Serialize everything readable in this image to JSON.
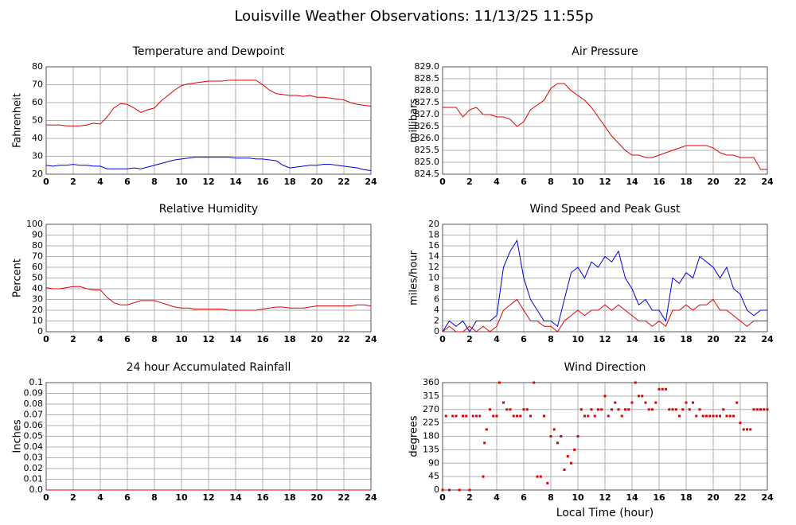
{
  "title": "Louisville Weather Observations: 11/13/25 11:55p",
  "chart_data": [
    {
      "type": "line",
      "title": "Temperature and Dewpoint",
      "ylabel": "Fahrenheit",
      "xlim": [
        0,
        24
      ],
      "xticks": [
        0,
        2,
        4,
        6,
        8,
        10,
        12,
        14,
        16,
        18,
        20,
        22,
        24
      ],
      "ylim": [
        20,
        80
      ],
      "yticks": [
        20,
        30,
        40,
        50,
        60,
        70,
        80
      ],
      "grid": true,
      "x": [
        0,
        0.5,
        1,
        1.5,
        2,
        2.5,
        3,
        3.5,
        4,
        4.5,
        5,
        5.5,
        6,
        6.5,
        7,
        7.5,
        8,
        8.5,
        9,
        9.5,
        10,
        10.5,
        11,
        11.5,
        12,
        12.5,
        13,
        13.5,
        14,
        14.5,
        15,
        15.5,
        16,
        16.5,
        17,
        17.5,
        18,
        18.5,
        19,
        19.5,
        20,
        20.5,
        21,
        21.5,
        22,
        22.5,
        23,
        23.5,
        24
      ],
      "series": [
        {
          "color": "#e00000",
          "values": [
            47.5,
            47.5,
            47.5,
            47,
            47,
            47,
            47.5,
            48.5,
            48,
            52,
            57,
            59.5,
            59,
            57,
            54.5,
            56,
            57,
            61,
            64,
            67,
            69.5,
            70.5,
            71,
            71.5,
            72,
            72,
            72,
            72.5,
            72.5,
            72.5,
            72.5,
            72.5,
            70,
            67,
            65,
            64.5,
            64,
            64,
            63.5,
            64,
            63,
            63,
            62.5,
            62,
            61.5,
            60,
            59,
            58.5,
            58
          ]
        },
        {
          "color": "#0000e0",
          "values": [
            25,
            24.5,
            25,
            25,
            25.5,
            25,
            25,
            24.5,
            24.5,
            23,
            23,
            23,
            23,
            23.5,
            23,
            24,
            25,
            26,
            27,
            28,
            28.5,
            29,
            29.5,
            29.5,
            29.5,
            29.5,
            29.5,
            29.5,
            29,
            29,
            29,
            28.5,
            28.5,
            28,
            27.5,
            25,
            23.5,
            24,
            24.5,
            25,
            25,
            25.5,
            25.5,
            25,
            24.5,
            24,
            23.5,
            22.5,
            22
          ]
        }
      ]
    },
    {
      "type": "line",
      "title": "Air Pressure",
      "ylabel": "millibars",
      "xlim": [
        0,
        24
      ],
      "xticks": [
        0,
        2,
        4,
        6,
        8,
        10,
        12,
        14,
        16,
        18,
        20,
        22,
        24
      ],
      "ylim": [
        824.5,
        829
      ],
      "yticks": [
        824.5,
        {
          "value": 825,
          "label": "825.0"
        },
        825.5,
        {
          "value": 826,
          "label": "826.0"
        },
        826.5,
        {
          "value": 827,
          "label": "827.0"
        },
        827.5,
        {
          "value": 828,
          "label": "828.0"
        },
        828.5,
        {
          "value": 829,
          "label": "829.0"
        }
      ],
      "grid": true,
      "x": [
        0,
        0.5,
        1,
        1.5,
        2,
        2.5,
        3,
        3.5,
        4,
        4.5,
        5,
        5.5,
        6,
        6.5,
        7,
        7.5,
        8,
        8.5,
        9,
        9.5,
        10,
        10.5,
        11,
        11.5,
        12,
        12.5,
        13,
        13.5,
        14,
        14.5,
        15,
        15.5,
        16,
        16.5,
        17,
        17.5,
        18,
        18.5,
        19,
        19.5,
        20,
        20.5,
        21,
        21.5,
        22,
        22.5,
        23,
        23.5,
        24
      ],
      "series": [
        {
          "color": "#e00000",
          "values": [
            827.3,
            827.3,
            827.3,
            826.9,
            827.2,
            827.3,
            827.0,
            827.0,
            826.9,
            826.9,
            826.8,
            826.5,
            826.7,
            827.2,
            827.4,
            827.6,
            828.1,
            828.3,
            828.3,
            828.0,
            827.8,
            827.6,
            827.3,
            826.9,
            826.5,
            826.1,
            825.8,
            825.5,
            825.3,
            825.3,
            825.2,
            825.2,
            825.3,
            825.4,
            825.5,
            825.6,
            825.7,
            825.7,
            825.7,
            825.7,
            825.6,
            825.4,
            825.3,
            825.3,
            825.2,
            825.2,
            825.2,
            824.7,
            824.7
          ]
        }
      ]
    },
    {
      "type": "line",
      "title": "Relative Humidity",
      "ylabel": "Percent",
      "xlim": [
        0,
        24
      ],
      "xticks": [
        0,
        2,
        4,
        6,
        8,
        10,
        12,
        14,
        16,
        18,
        20,
        22,
        24
      ],
      "ylim": [
        0,
        100
      ],
      "yticks": [
        0,
        10,
        20,
        30,
        40,
        50,
        60,
        70,
        80,
        90,
        100
      ],
      "grid": true,
      "x": [
        0,
        0.5,
        1,
        1.5,
        2,
        2.5,
        3,
        3.5,
        4,
        4.5,
        5,
        5.5,
        6,
        6.5,
        7,
        7.5,
        8,
        8.5,
        9,
        9.5,
        10,
        10.5,
        11,
        11.5,
        12,
        12.5,
        13,
        13.5,
        14,
        14.5,
        15,
        15.5,
        16,
        16.5,
        17,
        17.5,
        18,
        18.5,
        19,
        19.5,
        20,
        20.5,
        21,
        21.5,
        22,
        22.5,
        23,
        23.5,
        24
      ],
      "series": [
        {
          "color": "#e00000",
          "values": [
            41,
            40,
            40,
            41,
            42,
            42,
            40,
            39,
            39,
            32,
            27,
            25,
            25,
            27,
            29,
            29,
            29,
            27,
            25,
            23,
            22,
            22,
            21,
            21,
            21,
            21,
            21,
            20,
            20,
            20,
            20,
            20,
            21,
            22,
            23,
            23,
            22,
            22,
            22,
            23,
            24,
            24,
            24,
            24,
            24,
            24,
            25,
            25,
            24
          ]
        }
      ]
    },
    {
      "type": "line",
      "title": "Wind Speed and Peak Gust",
      "ylabel": "miles/hour",
      "xlim": [
        0,
        24
      ],
      "xticks": [
        0,
        2,
        4,
        6,
        8,
        10,
        12,
        14,
        16,
        18,
        20,
        22,
        24
      ],
      "ylim": [
        0,
        20
      ],
      "yticks": [
        0,
        2,
        4,
        6,
        8,
        10,
        12,
        14,
        16,
        18,
        20
      ],
      "grid": true,
      "x": [
        0,
        0.5,
        1,
        1.5,
        2,
        2.5,
        3,
        3.5,
        4,
        4.5,
        5,
        5.5,
        6,
        6.5,
        7,
        7.5,
        8,
        8.5,
        9,
        9.5,
        10,
        10.5,
        11,
        11.5,
        12,
        12.5,
        13,
        13.5,
        14,
        14.5,
        15,
        15.5,
        16,
        16.5,
        17,
        17.5,
        18,
        18.5,
        19,
        19.5,
        20,
        20.5,
        21,
        21.5,
        22,
        22.5,
        23,
        23.5,
        24
      ],
      "series": [
        {
          "color": "#0000e0",
          "values": [
            0,
            2,
            1,
            2,
            0,
            2,
            2,
            2,
            3,
            12,
            15,
            17,
            10,
            6,
            4,
            2,
            2,
            1,
            6,
            11,
            12,
            10,
            13,
            12,
            14,
            13,
            15,
            10,
            8,
            5,
            6,
            4,
            4,
            2,
            10,
            9,
            11,
            10,
            14,
            13,
            12,
            10,
            12,
            8,
            7,
            4,
            3,
            4,
            4
          ]
        },
        {
          "color": "#e00000",
          "values": [
            0,
            1,
            0,
            0,
            1,
            0,
            1,
            0,
            1,
            4,
            5,
            6,
            4,
            2,
            2,
            1,
            1,
            0,
            2,
            3,
            4,
            3,
            4,
            4,
            5,
            4,
            5,
            4,
            3,
            2,
            2,
            1,
            2,
            1,
            4,
            4,
            5,
            4,
            5,
            5,
            6,
            4,
            4,
            3,
            2,
            1,
            2,
            2,
            2
          ]
        }
      ]
    },
    {
      "type": "line",
      "title": "24 hour Accumulated Rainfall",
      "ylabel": "Inches",
      "xlim": [
        0,
        24
      ],
      "xticks": [
        0,
        2,
        4,
        6,
        8,
        10,
        12,
        14,
        16,
        18,
        20,
        22,
        24
      ],
      "ylim": [
        0,
        0.1
      ],
      "yticks": [
        {
          "value": 0,
          "label": "0.0"
        },
        0.01,
        0.02,
        0.03,
        0.04,
        0.05,
        0.06,
        0.07,
        0.08,
        0.09,
        0.1
      ],
      "grid": true,
      "x": [
        0,
        24
      ],
      "series": [
        {
          "color": "#e00000",
          "values": [
            0,
            0
          ]
        }
      ]
    },
    {
      "type": "scatter",
      "title": "Wind Direction",
      "ylabel": "degrees",
      "xlabel": "Local Time (hour)",
      "xlim": [
        0,
        24
      ],
      "xticks": [
        0,
        2,
        4,
        6,
        8,
        10,
        12,
        14,
        16,
        18,
        20,
        22,
        24
      ],
      "ylim": [
        0,
        360
      ],
      "yticks": [
        0,
        45,
        90,
        135,
        180,
        225,
        270,
        315,
        360
      ],
      "grid": true,
      "x": [
        0,
        0.25,
        0.5,
        0.75,
        1,
        1.25,
        1.5,
        1.75,
        2,
        2.25,
        2.5,
        2.75,
        3,
        3.1,
        3.25,
        3.5,
        3.75,
        4,
        4.2,
        4.5,
        4.75,
        5,
        5.25,
        5.5,
        5.75,
        6,
        6.25,
        6.5,
        6.75,
        7,
        7.25,
        7.5,
        7.75,
        8,
        8.25,
        8.5,
        8.75,
        9,
        9.25,
        9.5,
        9.75,
        10,
        10.25,
        10.5,
        10.75,
        11,
        11.25,
        11.5,
        11.75,
        12,
        12.25,
        12.5,
        12.75,
        13,
        13.25,
        13.5,
        13.75,
        14,
        14.25,
        14.5,
        14.75,
        15,
        15.25,
        15.5,
        15.75,
        16,
        16.25,
        16.5,
        16.75,
        17,
        17.25,
        17.5,
        17.75,
        18,
        18.25,
        18.5,
        18.75,
        19,
        19.25,
        19.5,
        19.75,
        20,
        20.25,
        20.5,
        20.75,
        21,
        21.25,
        21.5,
        21.75,
        22,
        22.25,
        22.5,
        22.75,
        23,
        23.25,
        23.5,
        23.75,
        24
      ],
      "series": [
        {
          "color": "#e00000",
          "values": [
            0,
            248,
            0,
            248,
            248,
            0,
            248,
            248,
            0,
            248,
            248,
            248,
            45,
            158,
            203,
            270,
            248,
            248,
            360,
            293,
            270,
            270,
            248,
            248,
            248,
            270,
            270,
            248,
            360,
            45,
            45,
            248,
            23,
            180,
            203,
            158,
            180,
            68,
            113,
            90,
            135,
            180,
            270,
            248,
            248,
            270,
            248,
            270,
            270,
            315,
            248,
            270,
            293,
            270,
            248,
            270,
            270,
            293,
            360,
            315,
            315,
            293,
            270,
            270,
            293,
            338,
            338,
            338,
            270,
            270,
            270,
            248,
            270,
            293,
            270,
            293,
            248,
            270,
            248,
            248,
            248,
            248,
            248,
            248,
            270,
            248,
            248,
            248,
            293,
            225,
            203,
            203,
            203,
            270,
            270,
            270,
            270,
            270
          ]
        }
      ]
    }
  ]
}
